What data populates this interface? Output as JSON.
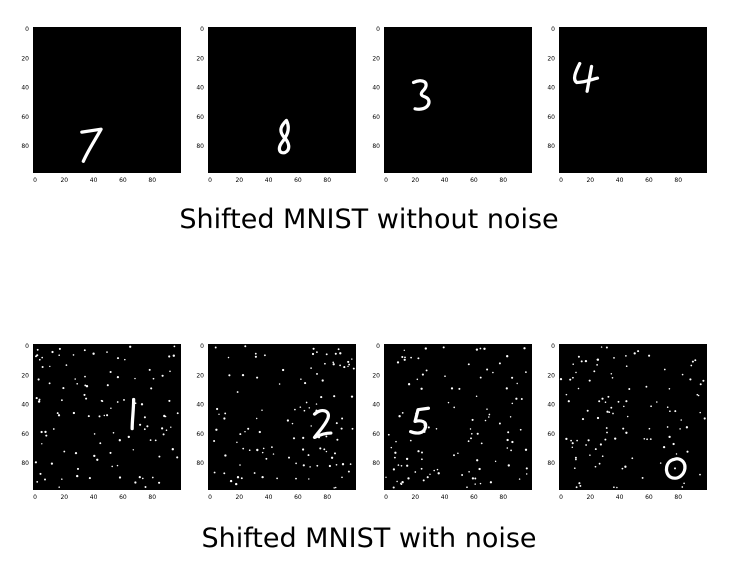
{
  "rows": [
    {
      "caption": "Shifted MNIST without noise",
      "panels": [
        {
          "digit": "7",
          "noise": false
        },
        {
          "digit": "8",
          "noise": false
        },
        {
          "digit": "3",
          "noise": false
        },
        {
          "digit": "4",
          "noise": false
        }
      ]
    },
    {
      "caption": "Shifted MNIST with noise",
      "panels": [
        {
          "digit": "1",
          "noise": true
        },
        {
          "digit": "2",
          "noise": true
        },
        {
          "digit": "5",
          "noise": true
        },
        {
          "digit": "0",
          "noise": true
        }
      ]
    }
  ],
  "axes": {
    "x_ticks": [
      "0",
      "20",
      "40",
      "60",
      "80"
    ],
    "y_ticks": [
      "0",
      "20",
      "40",
      "60",
      "80"
    ]
  },
  "colors": {
    "background": "#000000",
    "ink": "#ffffff",
    "tick_text": "#000000"
  }
}
